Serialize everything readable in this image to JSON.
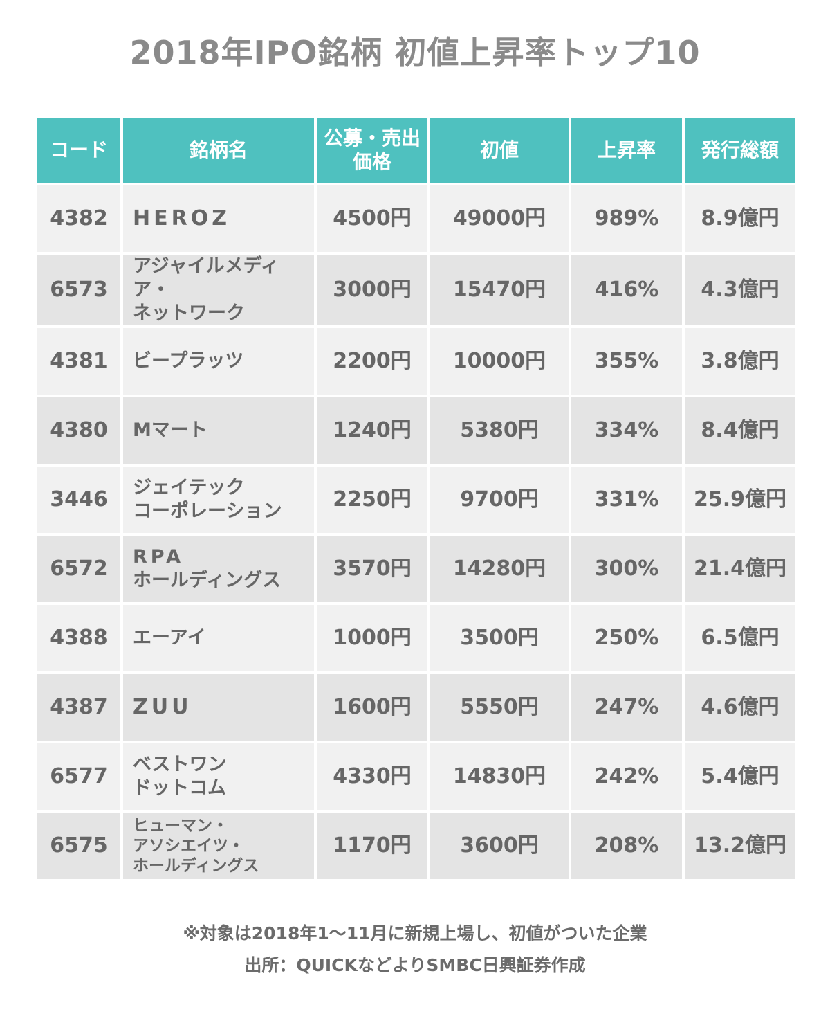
{
  "title": "2018年IPO銘柄 初値上昇率トップ10",
  "headers": {
    "code": "コード",
    "name": "銘柄名",
    "price_line1": "公募・売出",
    "price_line2": "価格",
    "initial": "初値",
    "rate": "上昇率",
    "total": "発行総額"
  },
  "rows": [
    {
      "code": "4382",
      "name1": "HEROZ",
      "name2": "",
      "name3": "",
      "price": "4500円",
      "initial": "49000円",
      "rate": "989%",
      "total": "8.9億円"
    },
    {
      "code": "6573",
      "name1": "アジャイルメディア・",
      "name2": "ネットワーク",
      "name3": "",
      "price": "3000円",
      "initial": "15470円",
      "rate": "416%",
      "total": "4.3億円"
    },
    {
      "code": "4381",
      "name1": "ビープラッツ",
      "name2": "",
      "name3": "",
      "price": "2200円",
      "initial": "10000円",
      "rate": "355%",
      "total": "3.8億円"
    },
    {
      "code": "4380",
      "name1": "Mマート",
      "name2": "",
      "name3": "",
      "price": "1240円",
      "initial": "5380円",
      "rate": "334%",
      "total": "8.4億円"
    },
    {
      "code": "3446",
      "name1": "ジェイテック",
      "name2": "コーポレーション",
      "name3": "",
      "price": "2250円",
      "initial": "9700円",
      "rate": "331%",
      "total": "25.9億円"
    },
    {
      "code": "6572",
      "name1": "RPA",
      "name2": "ホールディングス",
      "name3": "",
      "price": "3570円",
      "initial": "14280円",
      "rate": "300%",
      "total": "21.4億円"
    },
    {
      "code": "4388",
      "name1": "エーアイ",
      "name2": "",
      "name3": "",
      "price": "1000円",
      "initial": "3500円",
      "rate": "250%",
      "total": "6.5億円"
    },
    {
      "code": "4387",
      "name1": "ZUU",
      "name2": "",
      "name3": "",
      "price": "1600円",
      "initial": "5550円",
      "rate": "247%",
      "total": "4.6億円"
    },
    {
      "code": "6577",
      "name1": "ベストワン",
      "name2": "ドットコム",
      "name3": "",
      "price": "4330円",
      "initial": "14830円",
      "rate": "242%",
      "total": "5.4億円"
    },
    {
      "code": "6575",
      "name1": "ヒューマン・",
      "name2": "アソシエイツ・",
      "name3": "ホールディングス",
      "price": "1170円",
      "initial": "3600円",
      "rate": "208%",
      "total": "13.2億円"
    }
  ],
  "notes": {
    "line1": "※対象は2018年1〜11月に新規上場し、初値がついた企業",
    "line2": "出所：QUICKなどよりSMBC日興証券作成"
  },
  "colors": {
    "header_bg": "#4fc1bf",
    "header_text": "#ffffff",
    "row_light": "#f1f1f1",
    "row_dark": "#e4e4e4",
    "text": "#666666"
  }
}
